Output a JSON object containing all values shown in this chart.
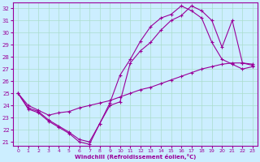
{
  "xlabel": "Windchill (Refroidissement éolien,°C)",
  "bg_color": "#cceeff",
  "line_color": "#990099",
  "grid_color": "#aaddcc",
  "xlim": [
    -0.5,
    23.5
  ],
  "ylim": [
    20.7,
    32.5
  ],
  "xticks": [
    0,
    1,
    2,
    3,
    4,
    5,
    6,
    7,
    8,
    9,
    10,
    11,
    12,
    13,
    14,
    15,
    16,
    17,
    18,
    19,
    20,
    21,
    22,
    23
  ],
  "yticks": [
    21,
    22,
    23,
    24,
    25,
    26,
    27,
    28,
    29,
    30,
    31,
    32
  ],
  "curve1_x": [
    0,
    1,
    2,
    3,
    4,
    5,
    6,
    7,
    8,
    9,
    10,
    11,
    12,
    13,
    14,
    15,
    16,
    17,
    18,
    19,
    20,
    21,
    22,
    23
  ],
  "curve1_y": [
    25,
    23.7,
    23.4,
    22.7,
    22.2,
    21.7,
    21.0,
    20.8,
    22.5,
    24.2,
    26.5,
    27.8,
    29.3,
    30.5,
    31.2,
    31.5,
    32.2,
    31.8,
    31.2,
    29.2,
    27.8,
    27.4,
    27.0,
    27.2
  ],
  "curve2_x": [
    0,
    1,
    2,
    3,
    4,
    5,
    6,
    7,
    8,
    9,
    10,
    11,
    12,
    13,
    14,
    15,
    16,
    17,
    18,
    19,
    20,
    21,
    22,
    23
  ],
  "curve2_y": [
    25,
    24.0,
    23.6,
    23.2,
    23.4,
    23.5,
    23.8,
    24.0,
    24.2,
    24.4,
    24.7,
    25.0,
    25.3,
    25.5,
    25.8,
    26.1,
    26.4,
    26.7,
    27.0,
    27.2,
    27.4,
    27.5,
    27.5,
    27.4
  ],
  "curve3_x": [
    0,
    1,
    2,
    3,
    4,
    5,
    6,
    7,
    8,
    9,
    10,
    11,
    12,
    13,
    14,
    15,
    16,
    17,
    18,
    19,
    20,
    21,
    22,
    23
  ],
  "curve3_y": [
    25,
    23.8,
    23.5,
    22.8,
    22.3,
    21.8,
    21.2,
    21.0,
    22.5,
    24.0,
    24.3,
    27.5,
    28.5,
    29.2,
    30.2,
    31.0,
    31.4,
    32.2,
    31.8,
    31.0,
    28.8,
    31.0,
    27.5,
    27.3
  ]
}
